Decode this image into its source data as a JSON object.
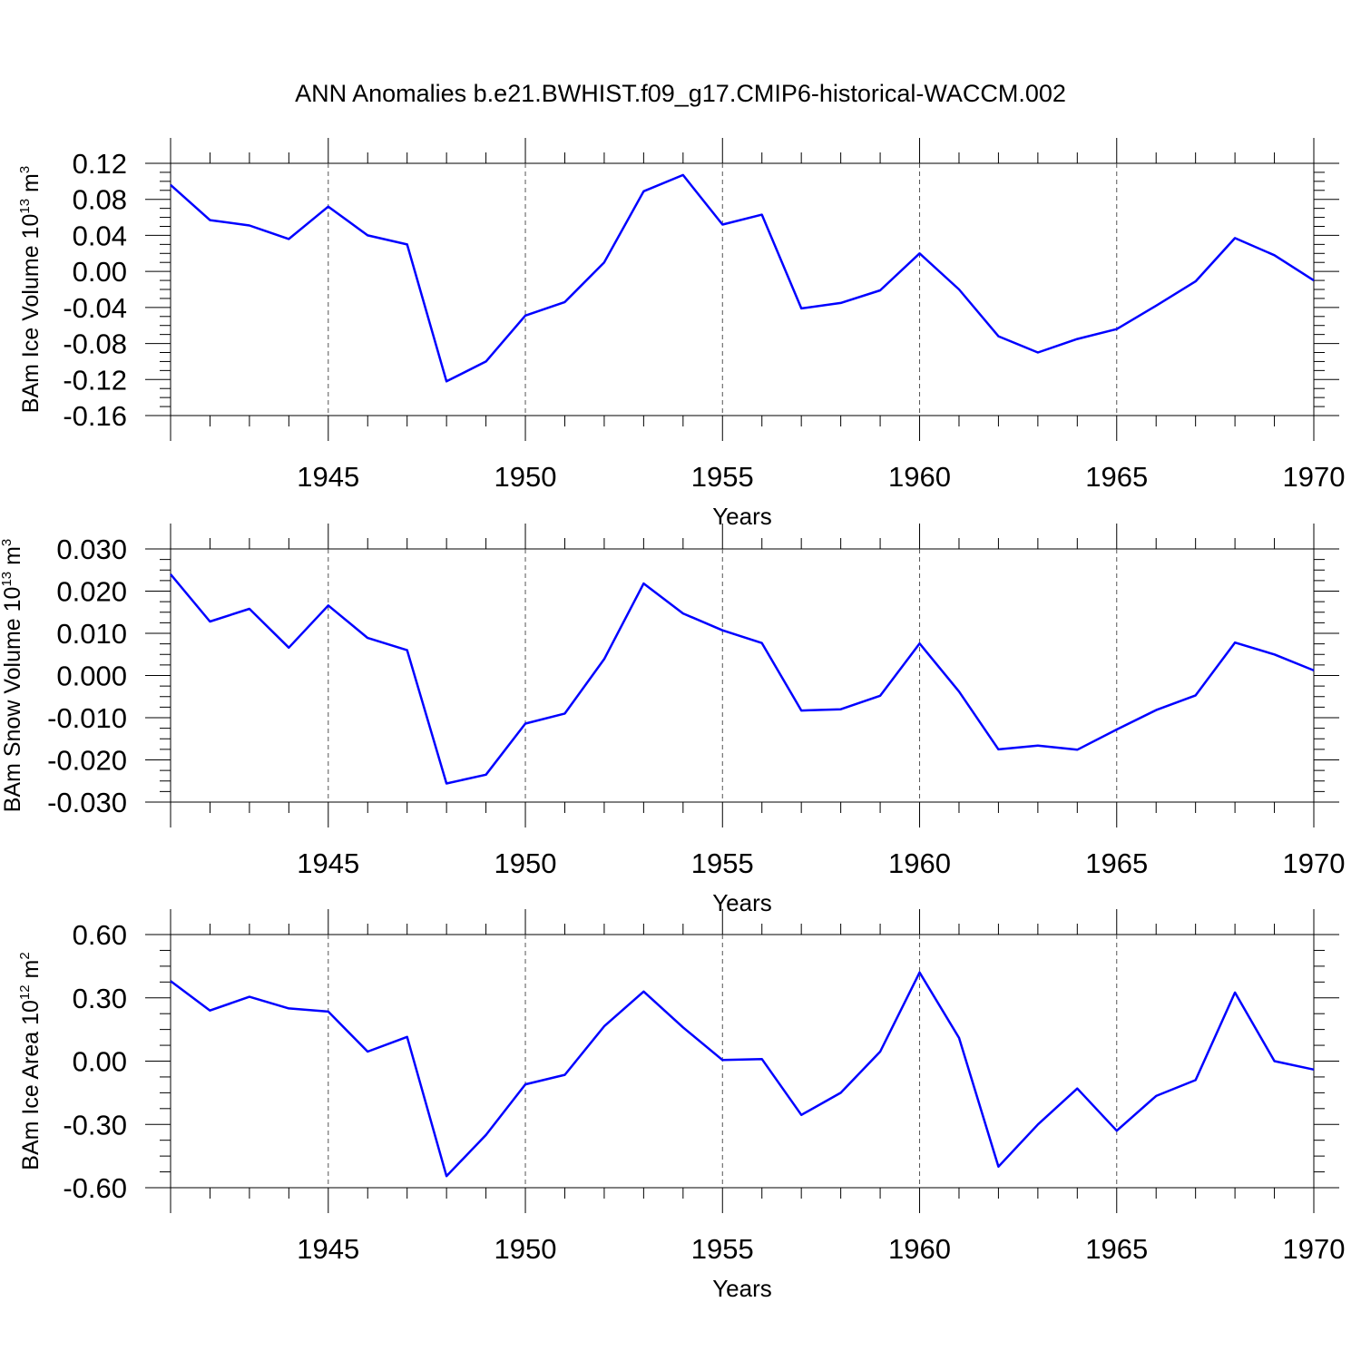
{
  "page": {
    "title": "ANN Anomalies b.e21.BWHIST.f09_g17.CMIP6-historical-WACCM.002"
  },
  "colors": {
    "line": "#0000ff",
    "axis": "#000000",
    "grid": "#555555"
  },
  "chart_data": [
    {
      "type": "line",
      "ylabel": "BAm Ice Volume 10",
      "ylabel_exponent": "13",
      "ylabel_unit": "m",
      "ylabel_unit_exponent": "3",
      "xlabel": "Years",
      "xlim": [
        1941,
        1970
      ],
      "ylim": [
        -0.16,
        0.12
      ],
      "yticks": [
        0.12,
        0.08,
        0.04,
        0.0,
        -0.04,
        -0.08,
        -0.12,
        -0.16
      ],
      "ytick_labels": [
        "0.12",
        "0.08",
        "0.04",
        "0.00",
        "-0.04",
        "-0.08",
        "-0.12",
        "-0.16"
      ],
      "xticks": [
        1945,
        1950,
        1955,
        1960,
        1965,
        1970
      ],
      "xtick_labels": [
        "1945",
        "1950",
        "1955",
        "1960",
        "1965",
        "1970"
      ],
      "grid": "vertical dashed at major x ticks",
      "series": [
        {
          "x": [
            1941,
            1942,
            1943,
            1944,
            1945,
            1946,
            1947,
            1948,
            1949,
            1950,
            1951,
            1952,
            1953,
            1954,
            1955,
            1956,
            1957,
            1958,
            1959,
            1960,
            1961,
            1962,
            1963,
            1964,
            1965,
            1966,
            1967,
            1968,
            1969,
            1970
          ],
          "values": [
            0.096,
            0.057,
            0.051,
            0.036,
            0.072,
            0.04,
            0.03,
            -0.122,
            -0.1,
            -0.049,
            -0.034,
            0.01,
            0.089,
            0.107,
            0.052,
            0.063,
            -0.041,
            -0.035,
            -0.021,
            0.02,
            -0.02,
            -0.072,
            -0.09,
            -0.075,
            -0.064,
            -0.038,
            -0.011,
            0.037,
            0.018,
            -0.01
          ]
        }
      ]
    },
    {
      "type": "line",
      "ylabel": "BAm Snow Volume 10",
      "ylabel_exponent": "13",
      "ylabel_unit": "m",
      "ylabel_unit_exponent": "3",
      "xlabel": "Years",
      "xlim": [
        1941,
        1970
      ],
      "ylim": [
        -0.03,
        0.03
      ],
      "yticks": [
        0.03,
        0.02,
        0.01,
        0.0,
        -0.01,
        -0.02,
        -0.03
      ],
      "ytick_labels": [
        "0.030",
        "0.020",
        "0.010",
        "0.000",
        "-0.010",
        "-0.020",
        "-0.030"
      ],
      "xticks": [
        1945,
        1950,
        1955,
        1960,
        1965,
        1970
      ],
      "xtick_labels": [
        "1945",
        "1950",
        "1955",
        "1960",
        "1965",
        "1970"
      ],
      "grid": "vertical dashed at major x ticks",
      "series": [
        {
          "x": [
            1941,
            1942,
            1943,
            1944,
            1945,
            1946,
            1947,
            1948,
            1949,
            1950,
            1951,
            1952,
            1953,
            1954,
            1955,
            1956,
            1957,
            1958,
            1959,
            1960,
            1961,
            1962,
            1963,
            1964,
            1965,
            1966,
            1967,
            1968,
            1969,
            1970
          ],
          "values": [
            0.024,
            0.0128,
            0.0158,
            0.0066,
            0.0166,
            0.0089,
            0.006,
            -0.0256,
            -0.0235,
            -0.0114,
            -0.009,
            0.0039,
            0.0218,
            0.0147,
            0.0107,
            0.0077,
            -0.0083,
            -0.008,
            -0.0048,
            0.0076,
            -0.0038,
            -0.0175,
            -0.0166,
            -0.0176,
            -0.0128,
            -0.0082,
            -0.0047,
            0.0078,
            0.005,
            0.0012
          ]
        }
      ]
    },
    {
      "type": "line",
      "ylabel": "BAm Ice Area 10",
      "ylabel_exponent": "12",
      "ylabel_unit": "m",
      "ylabel_unit_exponent": "2",
      "xlabel": "Years",
      "xlim": [
        1941,
        1970
      ],
      "ylim": [
        -0.6,
        0.6
      ],
      "yticks": [
        0.6,
        0.3,
        0.0,
        -0.3,
        -0.6
      ],
      "ytick_labels": [
        "0.60",
        "0.30",
        "0.00",
        "-0.30",
        "-0.60"
      ],
      "xticks": [
        1945,
        1950,
        1955,
        1960,
        1965,
        1970
      ],
      "xtick_labels": [
        "1945",
        "1950",
        "1955",
        "1960",
        "1965",
        "1970"
      ],
      "grid": "vertical dashed at major x ticks",
      "series": [
        {
          "x": [
            1941,
            1942,
            1943,
            1944,
            1945,
            1946,
            1947,
            1948,
            1949,
            1950,
            1951,
            1952,
            1953,
            1954,
            1955,
            1956,
            1957,
            1958,
            1959,
            1960,
            1961,
            1962,
            1963,
            1964,
            1965,
            1966,
            1967,
            1968,
            1969,
            1970
          ],
          "values": [
            0.38,
            0.24,
            0.305,
            0.25,
            0.235,
            0.045,
            0.115,
            -0.545,
            -0.35,
            -0.11,
            -0.065,
            0.165,
            0.33,
            0.16,
            0.005,
            0.01,
            -0.255,
            -0.15,
            0.045,
            0.42,
            0.11,
            -0.5,
            -0.3,
            -0.13,
            -0.33,
            -0.165,
            -0.09,
            0.325,
            0.0,
            -0.04
          ]
        }
      ]
    }
  ]
}
